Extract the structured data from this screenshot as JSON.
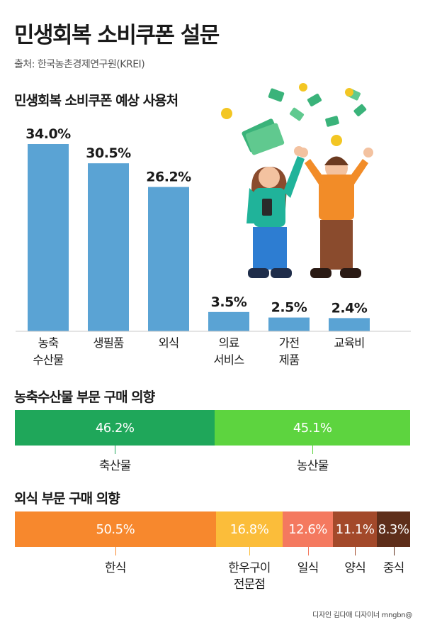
{
  "header": {
    "title": "민생회복 소비쿠폰 설문",
    "source": "출처: 한국농촌경제연구원(KREI)"
  },
  "chart_data": [
    {
      "type": "bar",
      "title": "민생회복 소비쿠폰 예상 사용처",
      "categories": [
        "농축\n수산물",
        "생필품",
        "외식",
        "의료\n서비스",
        "가전\n제품",
        "교육비"
      ],
      "values": [
        34.0,
        30.5,
        26.2,
        3.5,
        2.5,
        2.4
      ],
      "value_labels": [
        "34.0%",
        "30.5%",
        "26.2%",
        "3.5%",
        "2.5%",
        "2.4%"
      ],
      "ylim": [
        0,
        40
      ],
      "grid": false,
      "color": "#5aa3d4"
    },
    {
      "type": "bar",
      "stacked": true,
      "horizontal": true,
      "title": "농축수산물 부문 구매 의향",
      "categories": [
        "축산물",
        "농산물"
      ],
      "values": [
        46.2,
        45.1
      ],
      "value_labels": [
        "46.2%",
        "45.1%"
      ],
      "colors": [
        "#1fa75a",
        "#5dd43f"
      ]
    },
    {
      "type": "bar",
      "stacked": true,
      "horizontal": true,
      "title": "외식 부문 구매 의향",
      "categories": [
        "한식",
        "한우구이\n전문점",
        "일식",
        "양식",
        "중식"
      ],
      "values": [
        50.5,
        16.8,
        12.6,
        11.1,
        8.3
      ],
      "value_labels": [
        "50.5%",
        "16.8%",
        "12.6%",
        "11.1%",
        "8.3%"
      ],
      "colors": [
        "#f7882d",
        "#fbbd3a",
        "#f4795f",
        "#a3492a",
        "#5e2e1a"
      ]
    }
  ],
  "illustration": {
    "name": "people-celebrating-money-illustration",
    "colors": {
      "woman_top": "#20b39a",
      "woman_pants": "#2d7dd2",
      "man_top": "#f28c28",
      "man_pants": "#8a4b2d",
      "money": "#3ab37a",
      "coin": "#f3c623"
    }
  },
  "footer": {
    "credit": "디자인 김다애 디자이너 mngbn@"
  }
}
